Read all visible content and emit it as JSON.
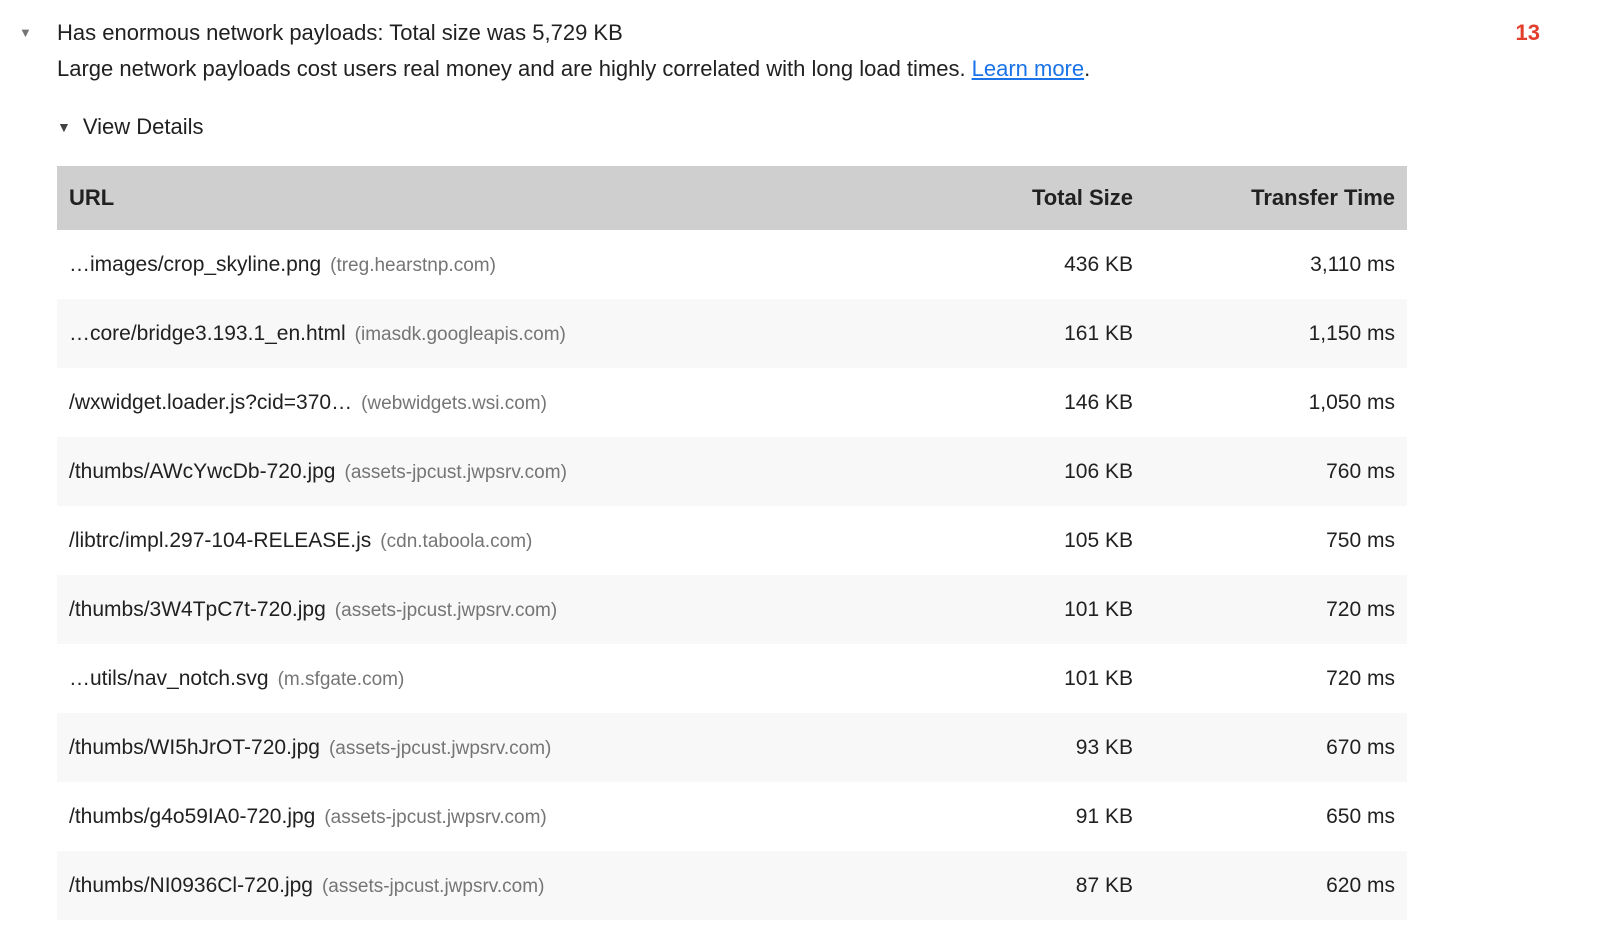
{
  "audit": {
    "expand_icon": "▼",
    "title": "Has enormous network payloads: Total size was 5,729 KB",
    "score": "13",
    "description": "Large network payloads cost users real money and are highly correlated with long load times.",
    "learn_more": "Learn more",
    "suffix": ".",
    "view_details": {
      "icon": "▼",
      "label": "View Details"
    }
  },
  "table": {
    "headers": {
      "url": "URL",
      "total_size": "Total Size",
      "transfer_time": "Transfer Time"
    },
    "rows": [
      {
        "url": "…images/crop_skyline.png",
        "domain": "(treg.hearstnp.com)",
        "total_size": "436 KB",
        "transfer_time": "3,110 ms"
      },
      {
        "url": "…core/bridge3.193.1_en.html",
        "domain": "(imasdk.googleapis.com)",
        "total_size": "161 KB",
        "transfer_time": "1,150 ms"
      },
      {
        "url": "/wxwidget.loader.js?cid=370…",
        "domain": "(webwidgets.wsi.com)",
        "total_size": "146 KB",
        "transfer_time": "1,050 ms"
      },
      {
        "url": "/thumbs/AWcYwcDb-720.jpg",
        "domain": "(assets-jpcust.jwpsrv.com)",
        "total_size": "106 KB",
        "transfer_time": "760 ms"
      },
      {
        "url": "/libtrc/impl.297-104-RELEASE.js",
        "domain": "(cdn.taboola.com)",
        "total_size": "105 KB",
        "transfer_time": "750 ms"
      },
      {
        "url": "/thumbs/3W4TpC7t-720.jpg",
        "domain": "(assets-jpcust.jwpsrv.com)",
        "total_size": "101 KB",
        "transfer_time": "720 ms"
      },
      {
        "url": "…utils/nav_notch.svg",
        "domain": "(m.sfgate.com)",
        "total_size": "101 KB",
        "transfer_time": "720 ms"
      },
      {
        "url": "/thumbs/WI5hJrOT-720.jpg",
        "domain": "(assets-jpcust.jwpsrv.com)",
        "total_size": "93 KB",
        "transfer_time": "670 ms"
      },
      {
        "url": "/thumbs/g4o59IA0-720.jpg",
        "domain": "(assets-jpcust.jwpsrv.com)",
        "total_size": "91 KB",
        "transfer_time": "650 ms"
      },
      {
        "url": "/thumbs/NI0936Cl-720.jpg",
        "domain": "(assets-jpcust.jwpsrv.com)",
        "total_size": "87 KB",
        "transfer_time": "620 ms"
      }
    ]
  },
  "colors": {
    "score_red": "#e33e2b",
    "link_blue": "#1a73e8",
    "header_bg": "#cfcfcf",
    "stripe_bg": "#f8f8f8",
    "text": "#212121",
    "muted": "#757575"
  }
}
